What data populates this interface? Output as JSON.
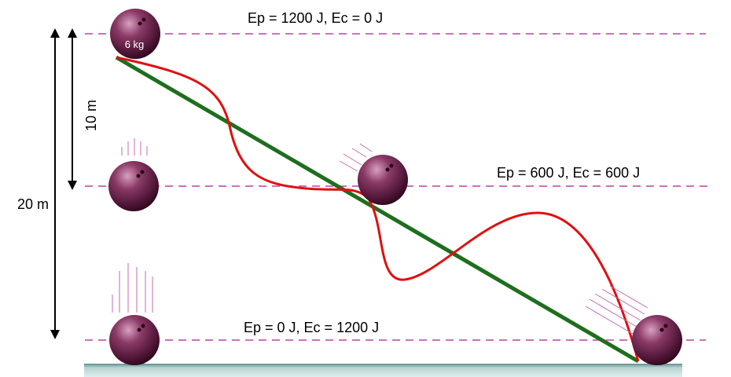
{
  "energy_labels": {
    "top": "Ep = 1200 J,  Ec = 0 J",
    "middle": "Ep = 600 J,   Ec = 600 J",
    "bottom": "Ep = 0 J,  Ec = 1200 J"
  },
  "ball_mass": "6 kg",
  "heights": {
    "short": "10 m",
    "long": "20 m"
  }
}
